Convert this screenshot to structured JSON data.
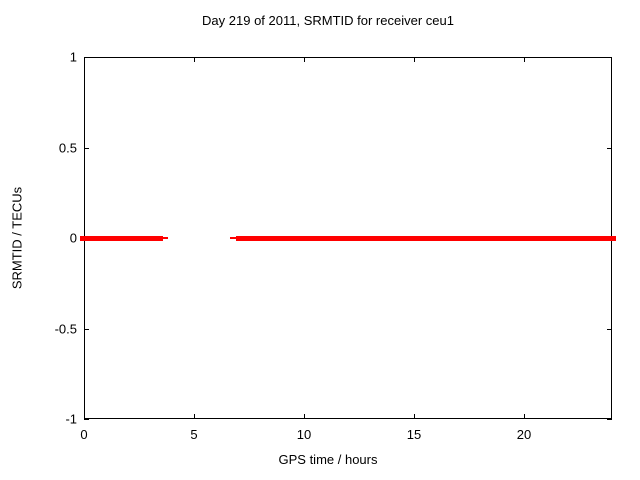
{
  "window": {
    "background": "#ffffff"
  },
  "chart_data": {
    "type": "line",
    "title": "Day 219 of 2011, SRMTID for receiver ceu1",
    "xlabel": "GPS time / hours",
    "ylabel": "SRMTID / TECUs",
    "xlim": [
      0,
      24
    ],
    "ylim": [
      -1,
      1
    ],
    "xticks": [
      {
        "value": 0,
        "label": "0"
      },
      {
        "value": 5,
        "label": "5"
      },
      {
        "value": 10,
        "label": "10"
      },
      {
        "value": 15,
        "label": "15"
      },
      {
        "value": 20,
        "label": "20"
      }
    ],
    "yticks": [
      {
        "value": 1,
        "label": "1"
      },
      {
        "value": 0.5,
        "label": "0.5"
      },
      {
        "value": 0,
        "label": "0"
      },
      {
        "value": -0.5,
        "label": "-0.5"
      },
      {
        "value": -1,
        "label": "-1"
      }
    ],
    "grid": true,
    "grid_style": "dashed",
    "legend": "none",
    "series": [
      {
        "name": "SRMTID",
        "color": "#ff0000",
        "description": "constant line at y=0 with data gap between ~3.8 and ~6.65 hours",
        "segments": [
          {
            "x_start": 0,
            "x_end": 3.6,
            "y": 0,
            "weight": "thick"
          },
          {
            "x_start": 3.6,
            "x_end": 3.8,
            "y": 0,
            "weight": "thin"
          },
          {
            "x_start": 6.65,
            "x_end": 6.9,
            "y": 0,
            "weight": "thin"
          },
          {
            "x_start": 6.9,
            "x_end": 24,
            "y": 0,
            "weight": "thick"
          }
        ]
      }
    ],
    "colors": {
      "line": "#ff0000",
      "grid": "#999999",
      "axis": "#000000",
      "text": "#000000",
      "background": "#ffffff"
    }
  }
}
